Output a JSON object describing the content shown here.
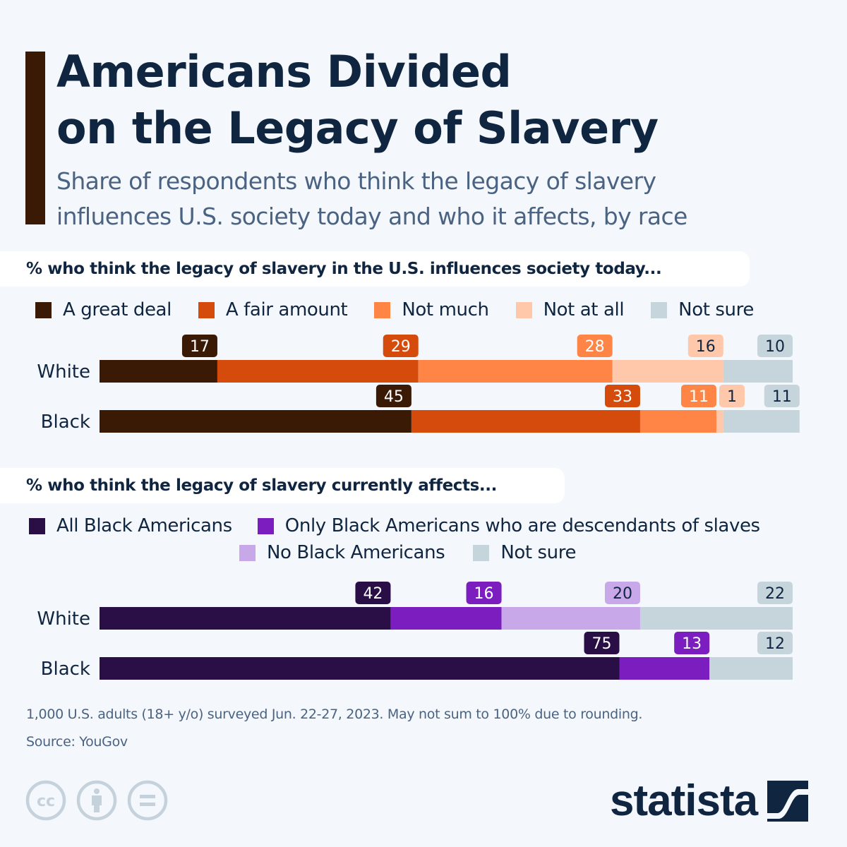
{
  "header": {
    "title_lines": [
      "Americans Divided",
      "on the Legacy of Slavery"
    ],
    "subtitle_lines": [
      "Share of respondents who think the legacy of slavery",
      "influences U.S. society today and who it affects, by race"
    ],
    "accent_color": "#3a1905"
  },
  "footer": {
    "note": "1,000 U.S. adults (18+ y/o) surveyed Jun. 22-27, 2023. May not sum to 100% due to rounding.",
    "source": "Source: YouGov"
  },
  "license_icons": [
    "creative-commons-icon",
    "attribution-icon",
    "no-derivatives-icon"
  ],
  "brand": {
    "name": "statista",
    "color": "#0f2540"
  },
  "chart_data": [
    {
      "type": "bar",
      "orientation": "horizontal",
      "stacked": true,
      "title": "% who think the legacy of slavery in the U.S. influences society today...",
      "categories": [
        "White",
        "Black"
      ],
      "series": [
        {
          "name": "A great deal",
          "color": "#3a1905",
          "label_text_color": "#ffffff",
          "values": [
            17,
            45
          ]
        },
        {
          "name": "A fair amount",
          "color": "#d54b0c",
          "label_text_color": "#ffffff",
          "values": [
            29,
            33
          ]
        },
        {
          "name": "Not much",
          "color": "#ff8547",
          "label_text_color": "#ffffff",
          "values": [
            28,
            11
          ]
        },
        {
          "name": "Not at all",
          "color": "#ffc8ab",
          "label_text_color": "#0f2540",
          "values": [
            16,
            1
          ]
        },
        {
          "name": "Not sure",
          "color": "#c6d4db",
          "label_text_color": "#0f2540",
          "values": [
            10,
            11
          ]
        }
      ],
      "xlim": [
        0,
        100
      ],
      "grid": false,
      "legend": "top"
    },
    {
      "type": "bar",
      "orientation": "horizontal",
      "stacked": true,
      "title": "% who think the legacy of slavery currently affects...",
      "categories": [
        "White",
        "Black"
      ],
      "series": [
        {
          "name": "All Black Americans",
          "color": "#2a0f47",
          "label_text_color": "#ffffff",
          "values": [
            42,
            75
          ]
        },
        {
          "name": "Only Black Americans who are descendants of slaves",
          "color": "#7b1dbf",
          "label_text_color": "#ffffff",
          "values": [
            16,
            13
          ]
        },
        {
          "name": "No Black Americans",
          "color": "#c9a8ea",
          "label_text_color": "#0f2540",
          "values": [
            20,
            0
          ]
        },
        {
          "name": "Not sure",
          "color": "#c6d4db",
          "label_text_color": "#0f2540",
          "values": [
            22,
            12
          ]
        }
      ],
      "xlim": [
        0,
        100
      ],
      "grid": false,
      "legend": "top"
    }
  ]
}
